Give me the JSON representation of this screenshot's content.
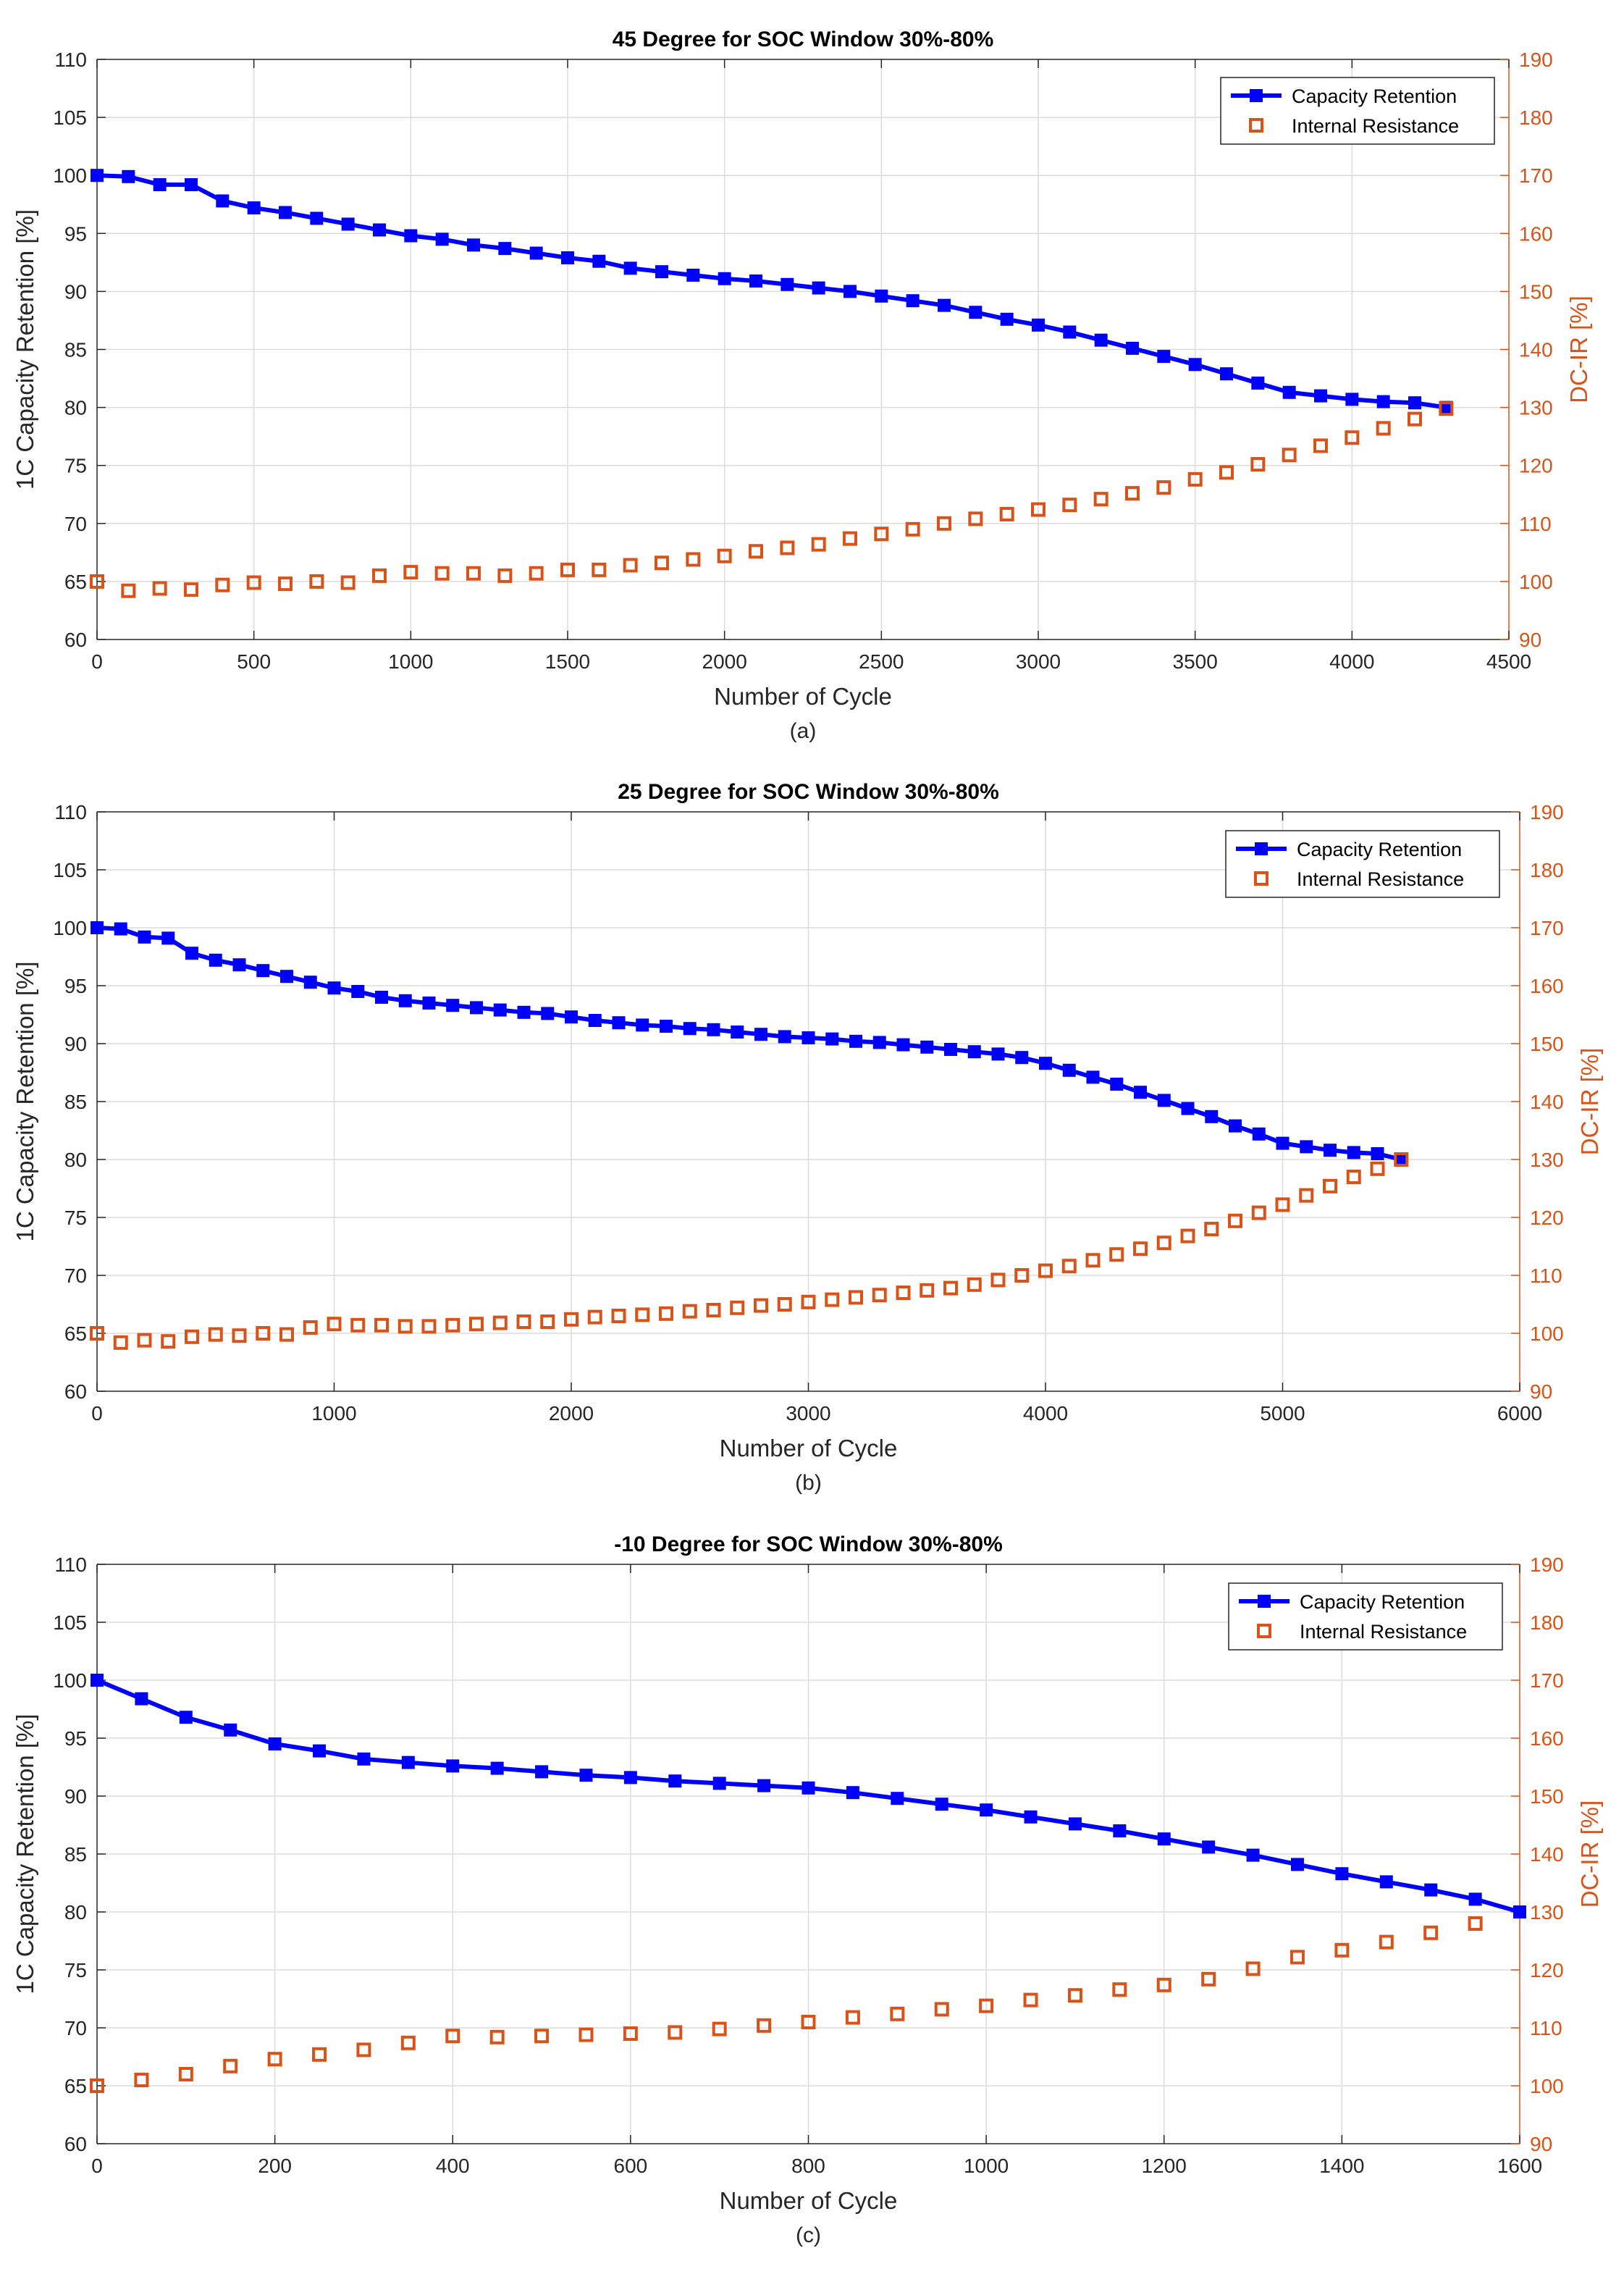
{
  "chart_data": [
    {
      "type": "line",
      "title": "45 Degree for SOC Window 30%-80%",
      "sublabel": "(a)",
      "xlabel": "Number of Cycle",
      "ylabel": "1C Capacity Retention [%]",
      "ylabel_right": "DC-IR [%]",
      "xlim": [
        0,
        4500
      ],
      "xticks": [
        0,
        500,
        1000,
        1500,
        2000,
        2500,
        3000,
        3500,
        4000,
        4500
      ],
      "ylim": [
        60,
        110
      ],
      "yticks": [
        60,
        65,
        70,
        75,
        80,
        85,
        90,
        95,
        100,
        105,
        110
      ],
      "ylim_right": [
        90,
        190
      ],
      "yticks_right": [
        90,
        100,
        110,
        120,
        130,
        140,
        150,
        160,
        170,
        180,
        190
      ],
      "grid": true,
      "legend_position": "top-right",
      "series": [
        {
          "name": "Capacity Retention",
          "axis": "left",
          "color": "#0000ff",
          "x": [
            0,
            100,
            200,
            300,
            400,
            500,
            600,
            700,
            800,
            900,
            1000,
            1100,
            1200,
            1300,
            1400,
            1500,
            1600,
            1700,
            1800,
            1900,
            2000,
            2100,
            2200,
            2300,
            2400,
            2500,
            2600,
            2700,
            2800,
            2900,
            3000,
            3100,
            3200,
            3300,
            3400,
            3500,
            3600,
            3700,
            3800,
            3900,
            4000,
            4100,
            4200,
            4300
          ],
          "values": [
            100,
            99.9,
            99.2,
            99.2,
            97.8,
            97.2,
            96.8,
            96.3,
            95.8,
            95.3,
            94.8,
            94.5,
            94.0,
            93.7,
            93.3,
            92.9,
            92.6,
            92.0,
            91.7,
            91.4,
            91.1,
            90.9,
            90.6,
            90.3,
            90.0,
            89.6,
            89.2,
            88.8,
            88.2,
            87.6,
            87.1,
            86.5,
            85.8,
            85.1,
            84.4,
            83.7,
            82.9,
            82.1,
            81.3,
            81.0,
            80.7,
            80.5,
            80.4,
            80.0
          ]
        },
        {
          "name": "Internal Resistance",
          "axis": "right",
          "color": "#d95319",
          "x": [
            0,
            100,
            200,
            300,
            400,
            500,
            600,
            700,
            800,
            900,
            1000,
            1100,
            1200,
            1300,
            1400,
            1500,
            1600,
            1700,
            1800,
            1900,
            2000,
            2100,
            2200,
            2300,
            2400,
            2500,
            2600,
            2700,
            2800,
            2900,
            3000,
            3100,
            3200,
            3300,
            3400,
            3500,
            3600,
            3700,
            3800,
            3900,
            4000,
            4100,
            4200,
            4300
          ],
          "values": [
            100,
            98.4,
            98.8,
            98.6,
            99.4,
            99.8,
            99.6,
            100,
            99.8,
            101,
            101.6,
            101.4,
            101.4,
            101,
            101.4,
            102,
            102,
            102.8,
            103.2,
            103.8,
            104.4,
            105.2,
            105.8,
            106.4,
            107.4,
            108.2,
            109,
            110,
            110.8,
            111.6,
            112.4,
            113.2,
            114.2,
            115.2,
            116.2,
            117.6,
            118.8,
            120.2,
            121.8,
            123.4,
            124.8,
            126.4,
            128,
            129.8
          ]
        }
      ]
    },
    {
      "type": "line",
      "title": "25 Degree for SOC Window 30%-80%",
      "sublabel": "(b)",
      "xlabel": "Number of Cycle",
      "ylabel": "1C Capacity Retention [%]",
      "ylabel_right": "DC-IR [%]",
      "xlim": [
        0,
        6000
      ],
      "xticks": [
        0,
        1000,
        2000,
        3000,
        4000,
        5000,
        6000
      ],
      "ylim": [
        60,
        110
      ],
      "yticks": [
        60,
        65,
        70,
        75,
        80,
        85,
        90,
        95,
        100,
        105,
        110
      ],
      "ylim_right": [
        90,
        190
      ],
      "yticks_right": [
        90,
        100,
        110,
        120,
        130,
        140,
        150,
        160,
        170,
        180,
        190
      ],
      "grid": true,
      "legend_position": "top-right",
      "series": [
        {
          "name": "Capacity Retention",
          "axis": "left",
          "color": "#0000ff",
          "x": [
            0,
            100,
            200,
            300,
            400,
            500,
            600,
            700,
            800,
            900,
            1000,
            1100,
            1200,
            1300,
            1400,
            1500,
            1600,
            1700,
            1800,
            1900,
            2000,
            2100,
            2200,
            2300,
            2400,
            2500,
            2600,
            2700,
            2800,
            2900,
            3000,
            3100,
            3200,
            3300,
            3400,
            3500,
            3600,
            3700,
            3800,
            3900,
            4000,
            4100,
            4200,
            4300,
            4400,
            4500,
            4600,
            4700,
            4800,
            4900,
            5000,
            5100,
            5200,
            5300,
            5400,
            5500
          ],
          "values": [
            100,
            99.9,
            99.2,
            99.1,
            97.8,
            97.2,
            96.8,
            96.3,
            95.8,
            95.3,
            94.8,
            94.5,
            94.0,
            93.7,
            93.5,
            93.3,
            93.1,
            92.9,
            92.7,
            92.6,
            92.3,
            92.0,
            91.8,
            91.6,
            91.5,
            91.3,
            91.2,
            91.0,
            90.8,
            90.6,
            90.5,
            90.4,
            90.2,
            90.1,
            89.9,
            89.7,
            89.5,
            89.3,
            89.1,
            88.8,
            88.3,
            87.7,
            87.1,
            86.5,
            85.8,
            85.1,
            84.4,
            83.7,
            82.9,
            82.2,
            81.4,
            81.1,
            80.8,
            80.6,
            80.5,
            80.0
          ]
        },
        {
          "name": "Internal Resistance",
          "axis": "right",
          "color": "#d95319",
          "x": [
            0,
            100,
            200,
            300,
            400,
            500,
            600,
            700,
            800,
            900,
            1000,
            1100,
            1200,
            1300,
            1400,
            1500,
            1600,
            1700,
            1800,
            1900,
            2000,
            2100,
            2200,
            2300,
            2400,
            2500,
            2600,
            2700,
            2800,
            2900,
            3000,
            3100,
            3200,
            3300,
            3400,
            3500,
            3600,
            3700,
            3800,
            3900,
            4000,
            4100,
            4200,
            4300,
            4400,
            4500,
            4600,
            4700,
            4800,
            4900,
            5000,
            5100,
            5200,
            5300,
            5400,
            5500
          ],
          "values": [
            100,
            98.4,
            98.8,
            98.6,
            99.4,
            99.8,
            99.6,
            100,
            99.8,
            101,
            101.6,
            101.4,
            101.4,
            101.2,
            101.2,
            101.4,
            101.6,
            101.8,
            102,
            102,
            102.4,
            102.8,
            103,
            103.2,
            103.4,
            103.8,
            104,
            104.4,
            104.8,
            105,
            105.4,
            105.8,
            106.2,
            106.6,
            107,
            107.4,
            107.8,
            108.4,
            109.2,
            110,
            110.8,
            111.6,
            112.6,
            113.6,
            114.6,
            115.6,
            116.8,
            118,
            119.4,
            120.8,
            122.2,
            123.8,
            125.4,
            127,
            128.4,
            130.0
          ]
        }
      ]
    },
    {
      "type": "line",
      "title": "-10 Degree for SOC Window 30%-80%",
      "sublabel": "(c)",
      "xlabel": "Number of Cycle",
      "ylabel": "1C Capacity Retention [%]",
      "ylabel_right": "DC-IR [%]",
      "xlim": [
        0,
        1600
      ],
      "xticks": [
        0,
        200,
        400,
        600,
        800,
        1000,
        1200,
        1400,
        1600
      ],
      "ylim": [
        60,
        110
      ],
      "yticks": [
        60,
        65,
        70,
        75,
        80,
        85,
        90,
        95,
        100,
        105,
        110
      ],
      "ylim_right": [
        90,
        190
      ],
      "yticks_right": [
        90,
        100,
        110,
        120,
        130,
        140,
        150,
        160,
        170,
        180,
        190
      ],
      "grid": true,
      "legend_position": "top-right",
      "series": [
        {
          "name": "Capacity Retention",
          "axis": "left",
          "color": "#0000ff",
          "x": [
            0,
            50,
            100,
            150,
            200,
            250,
            300,
            350,
            400,
            450,
            500,
            550,
            600,
            650,
            700,
            750,
            800,
            850,
            900,
            950,
            1000,
            1050,
            1100,
            1150,
            1200,
            1250,
            1300,
            1350,
            1400,
            1450,
            1500,
            1550,
            1600
          ],
          "values": [
            100,
            98.4,
            96.8,
            95.7,
            94.5,
            93.9,
            93.2,
            92.9,
            92.6,
            92.4,
            92.1,
            91.8,
            91.6,
            91.3,
            91.1,
            90.9,
            90.7,
            90.3,
            89.8,
            89.3,
            88.8,
            88.2,
            87.6,
            87.0,
            86.3,
            85.6,
            84.9,
            84.1,
            83.3,
            82.6,
            81.9,
            81.1,
            80.0
          ]
        },
        {
          "name": "Internal Resistance",
          "axis": "right",
          "color": "#d95319",
          "x": [
            0,
            50,
            100,
            150,
            200,
            250,
            300,
            350,
            400,
            450,
            500,
            550,
            600,
            650,
            700,
            750,
            800,
            850,
            900,
            950,
            1000,
            1050,
            1100,
            1150,
            1200,
            1250,
            1300,
            1350,
            1400,
            1450,
            1500,
            1550
          ],
          "values": [
            100,
            101,
            102,
            103.4,
            104.6,
            105.4,
            106.2,
            107.4,
            108.6,
            108.4,
            108.6,
            108.8,
            109,
            109.2,
            109.8,
            110.4,
            111,
            111.8,
            112.4,
            113.2,
            113.8,
            114.8,
            115.6,
            116.6,
            117.4,
            118.4,
            120.2,
            122.2,
            123.4,
            124.8,
            126.4,
            128
          ]
        }
      ]
    }
  ]
}
